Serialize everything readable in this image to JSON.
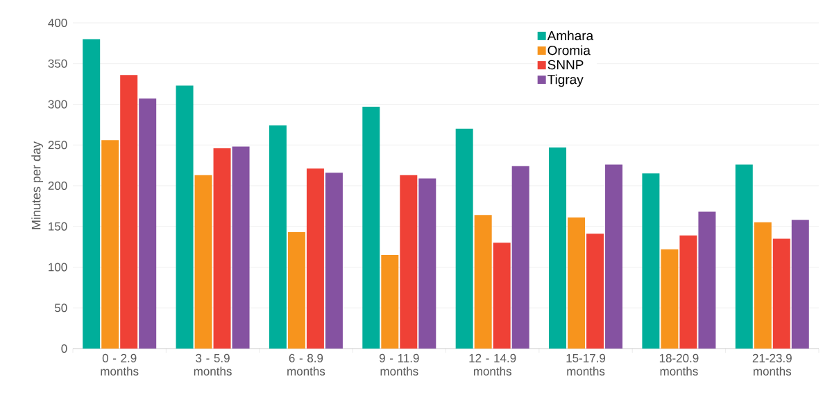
{
  "chart_data": {
    "type": "bar",
    "ylabel": "Minutes per day",
    "categories": [
      "0 - 2.9 months",
      "3 - 5.9 months",
      "6 - 8.9 months",
      "9 - 11.9 months",
      "12 - 14.9 months",
      "15-17.9 months",
      "18-20.9 months",
      "21-23.9 months"
    ],
    "series": [
      {
        "name": "Amhara",
        "color": "#00ae9a",
        "values": [
          380,
          323,
          274,
          297,
          270,
          247,
          215,
          226
        ]
      },
      {
        "name": "Oromia",
        "color": "#f7941d",
        "values": [
          256,
          213,
          143,
          115,
          164,
          161,
          122,
          155
        ]
      },
      {
        "name": "SNNP",
        "color": "#ef4136",
        "values": [
          336,
          246,
          221,
          213,
          130,
          141,
          139,
          135
        ]
      },
      {
        "name": "Tigray",
        "color": "#8552a1",
        "values": [
          307,
          248,
          216,
          209,
          224,
          226,
          168,
          158
        ]
      }
    ],
    "ylim": [
      0,
      400
    ],
    "yticks": [
      0,
      50,
      100,
      150,
      200,
      250,
      300,
      350,
      400
    ],
    "grid": "y",
    "legend": "top right"
  }
}
